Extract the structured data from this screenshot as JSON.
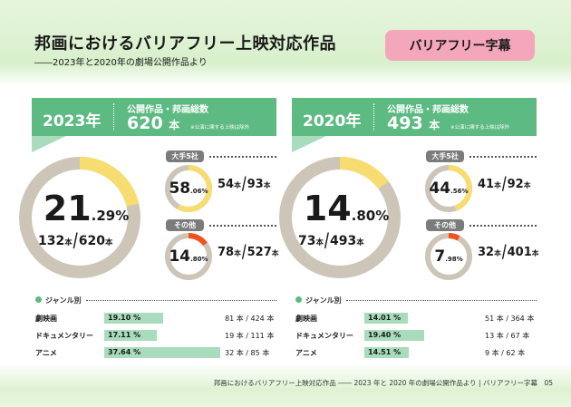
{
  "header": {
    "title": "邦画におけるバリアフリー上映対応作品",
    "subtitle": "――2023年と2020年の劇場公開作品より",
    "tag": "バリアフリー字幕"
  },
  "footer": "邦画におけるバリアフリー上映対応作品 ―― 2023 年と 2020 年の劇場公開作品より | バリアフリー字幕　05",
  "colors": {
    "header_green": "#5dba82",
    "bar_green": "#a8dcbc",
    "ring_gray": "#cdc6b8",
    "overall_yellow": "#f7dc6f",
    "major_yellow": "#f7dc6f",
    "other_orange": "#f0521e",
    "tag_pink": "#f4a6bb"
  },
  "labels": {
    "total_label": "公開作品・邦画総数",
    "unit": "本",
    "note": "※公演に関する上映は除外",
    "major": "大手5社",
    "other": "その他",
    "genre": "ジャンル別"
  },
  "chart_data": [
    {
      "type": "pie",
      "year": "2023年",
      "total": 620,
      "overall": {
        "pct_int": "21",
        "pct_dec": ".29%",
        "percent": 21.29,
        "count": 132,
        "of": 620
      },
      "major": {
        "pct_int": "58",
        "pct_dec": ".06%",
        "percent": 58.06,
        "count": 54,
        "of": 93
      },
      "other": {
        "pct_int": "14",
        "pct_dec": ".80%",
        "percent": 14.8,
        "count": 78,
        "of": 527
      },
      "genres": [
        {
          "name": "劇映画",
          "percent": 19.1,
          "label": "19.10 %",
          "counts": "81 本 / 424 本"
        },
        {
          "name": "ドキュメンタリー",
          "percent": 17.11,
          "label": "17.11 %",
          "counts": "19 本 / 111 本"
        },
        {
          "name": "アニメ",
          "percent": 37.64,
          "label": "37.64 %",
          "counts": "32 本 / 85 本"
        }
      ]
    },
    {
      "type": "pie",
      "year": "2020年",
      "total": 493,
      "overall": {
        "pct_int": "14",
        "pct_dec": ".80%",
        "percent": 14.8,
        "count": 73,
        "of": 493
      },
      "major": {
        "pct_int": "44",
        "pct_dec": ".56%",
        "percent": 44.56,
        "count": 41,
        "of": 92
      },
      "other": {
        "pct_int": "7",
        "pct_dec": ".98%",
        "percent": 7.98,
        "count": 32,
        "of": 401
      },
      "genres": [
        {
          "name": "劇映画",
          "percent": 14.01,
          "label": "14.01 %",
          "counts": "51 本 / 364 本"
        },
        {
          "name": "ドキュメンタリー",
          "percent": 19.4,
          "label": "19.40 %",
          "counts": "13 本 / 67 本"
        },
        {
          "name": "アニメ",
          "percent": 14.51,
          "label": "14.51 %",
          "counts": "9 本 / 62 本"
        }
      ]
    }
  ]
}
